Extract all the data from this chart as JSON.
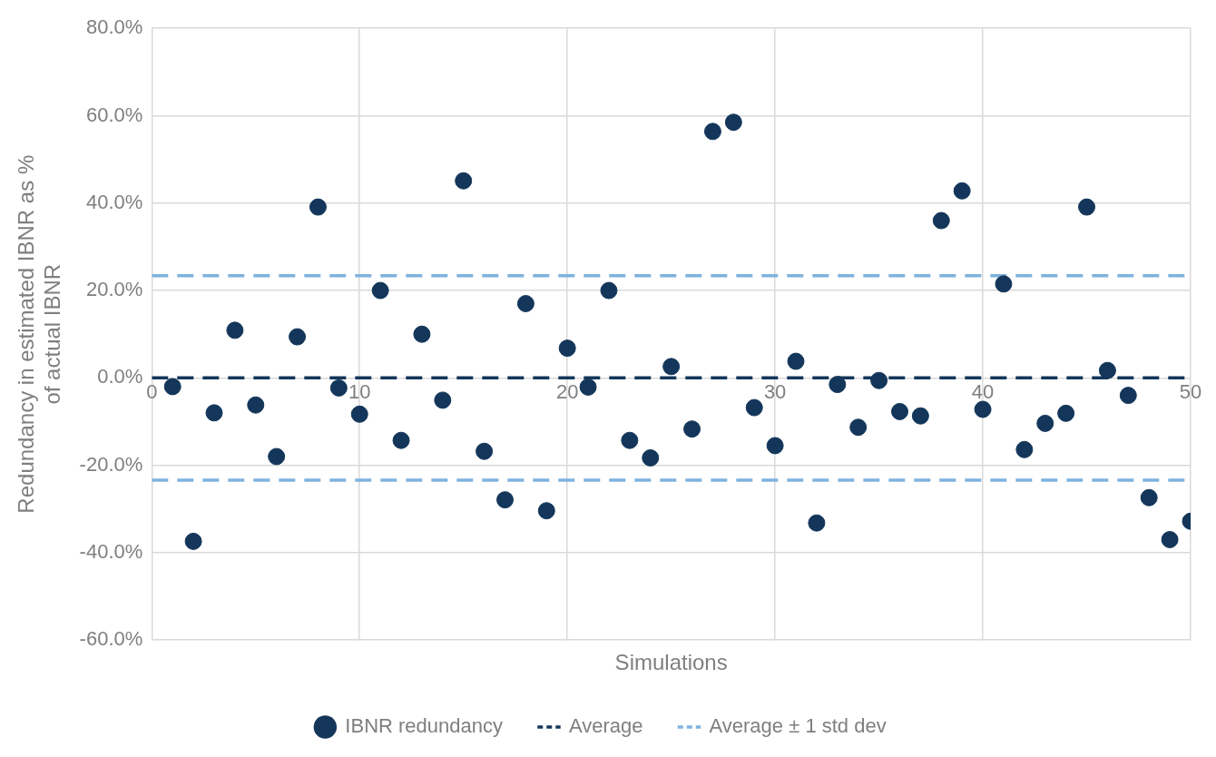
{
  "chart_data": {
    "type": "scatter",
    "xlabel": "Simulations",
    "ylabel": "Redundancy in estimated IBNR as %\nof actual IBNR",
    "xlim": [
      0,
      50
    ],
    "xticks": [
      0,
      10,
      20,
      30,
      40,
      50
    ],
    "ylim": [
      -60,
      80
    ],
    "yticks": [
      {
        "value": -60,
        "label": "-60.0%"
      },
      {
        "value": -40,
        "label": "-40.0%"
      },
      {
        "value": -20,
        "label": "-20.0%"
      },
      {
        "value": 0,
        "label": "0.0%"
      },
      {
        "value": 20,
        "label": "20.0%"
      },
      {
        "value": 40,
        "label": "40.0%"
      },
      {
        "value": 60,
        "label": "60.0%"
      },
      {
        "value": 80,
        "label": "80.0%"
      }
    ],
    "grid": true,
    "legend": "bottom",
    "marker": "circle",
    "series": [
      {
        "name": "IBNR redundancy",
        "type": "scatter",
        "color": "#13365a",
        "x": [
          1,
          2,
          3,
          4,
          5,
          6,
          7,
          8,
          9,
          10,
          11,
          12,
          13,
          14,
          15,
          16,
          17,
          18,
          19,
          20,
          21,
          22,
          23,
          24,
          25,
          26,
          27,
          28,
          29,
          30,
          31,
          32,
          33,
          34,
          35,
          36,
          37,
          38,
          39,
          40,
          41,
          42,
          43,
          44,
          45,
          46,
          47,
          48,
          49,
          50
        ],
        "values": [
          -2,
          -37.4,
          -8,
          10.9,
          -6.2,
          -18,
          9.4,
          39.1,
          -2.3,
          -8.3,
          20,
          -14.3,
          10,
          -5.1,
          45.1,
          -16.8,
          -27.9,
          17,
          -30.4,
          6.8,
          -2.1,
          20,
          -14.3,
          -18.3,
          2.6,
          -11.7,
          56.4,
          58.5,
          -6.8,
          -15.5,
          3.8,
          -33.2,
          -1.5,
          -11.3,
          -0.6,
          -7.7,
          -8.7,
          36,
          42.8,
          -7.2,
          21.5,
          -16.4,
          -10.4,
          -8.1,
          39.1,
          1.7,
          -4,
          -27.4,
          -37,
          -32.8
        ]
      },
      {
        "name": "Average",
        "type": "line",
        "color": "#13365a",
        "line_style": "dashed",
        "marker": "none",
        "x": [
          0,
          50
        ],
        "values": [
          0,
          0
        ]
      },
      {
        "name": "Average ± 1 std dev",
        "type": "line",
        "color": "#7eb2de",
        "line_style": "dashed",
        "marker": "none",
        "x": [
          0,
          50
        ],
        "values": [
          23.4,
          23.4
        ]
      },
      {
        "type": "line",
        "color": "#7eb2de",
        "line_style": "dashed",
        "marker": "none",
        "x": [
          0,
          50
        ],
        "values": [
          -23.4,
          -23.4
        ]
      }
    ]
  }
}
